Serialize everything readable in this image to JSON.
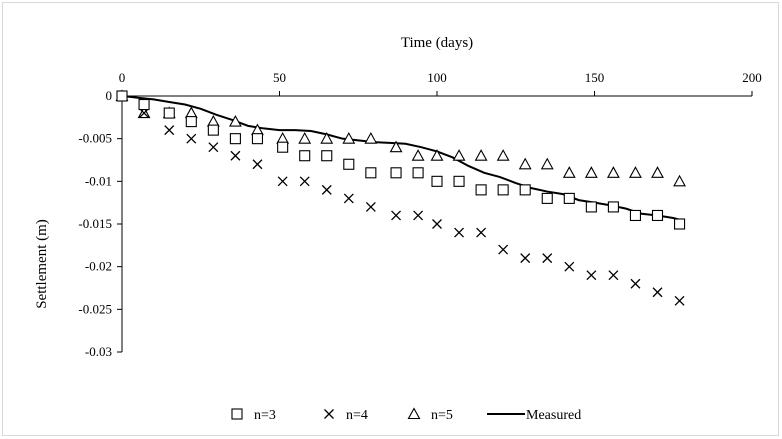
{
  "chart_data": {
    "type": "scatter",
    "xlabel": "Time (days)",
    "ylabel": "Settlement (m)",
    "xlim": [
      0,
      200
    ],
    "ylim": [
      -0.03,
      0
    ],
    "x_ticks": [
      0,
      50,
      100,
      150,
      200
    ],
    "y_ticks": [
      0,
      -0.005,
      -0.01,
      -0.015,
      -0.02,
      -0.025,
      -0.03
    ],
    "x_tick_labels": [
      "0",
      "50",
      "100",
      "150",
      "200"
    ],
    "y_tick_labels": [
      "0",
      "-0.005",
      "-0.01",
      "-0.015",
      "-0.02",
      "-0.025",
      "-0.03"
    ],
    "x_axis_position": "top",
    "grid": false,
    "legend_position": "bottom",
    "series": [
      {
        "name": "n=3",
        "marker": "square",
        "color": "#000000",
        "x": [
          0,
          7,
          15,
          22,
          29,
          36,
          43,
          51,
          58,
          65,
          72,
          79,
          87,
          94,
          100,
          107,
          114,
          121,
          128,
          135,
          142,
          149,
          156,
          163,
          170,
          177
        ],
        "y": [
          0,
          -0.001,
          -0.002,
          -0.003,
          -0.004,
          -0.005,
          -0.005,
          -0.006,
          -0.007,
          -0.007,
          -0.008,
          -0.009,
          -0.009,
          -0.009,
          -0.01,
          -0.01,
          -0.011,
          -0.011,
          -0.011,
          -0.012,
          -0.012,
          -0.013,
          -0.013,
          -0.014,
          -0.014,
          -0.015
        ]
      },
      {
        "name": "n=4",
        "marker": "x",
        "color": "#000000",
        "x": [
          0,
          7,
          15,
          22,
          29,
          36,
          43,
          51,
          58,
          65,
          72,
          79,
          87,
          94,
          100,
          107,
          114,
          121,
          128,
          135,
          142,
          149,
          156,
          163,
          170,
          177
        ],
        "y": [
          0,
          -0.002,
          -0.004,
          -0.005,
          -0.006,
          -0.007,
          -0.008,
          -0.01,
          -0.01,
          -0.011,
          -0.012,
          -0.013,
          -0.014,
          -0.014,
          -0.015,
          -0.016,
          -0.016,
          -0.018,
          -0.019,
          -0.019,
          -0.02,
          -0.021,
          -0.021,
          -0.022,
          -0.023,
          -0.024
        ]
      },
      {
        "name": "n=5",
        "marker": "triangle",
        "color": "#000000",
        "x": [
          0,
          7,
          15,
          22,
          29,
          36,
          43,
          51,
          58,
          65,
          72,
          79,
          87,
          94,
          100,
          107,
          114,
          121,
          128,
          135,
          142,
          149,
          156,
          163,
          170,
          177
        ],
        "y": [
          0,
          -0.002,
          -0.002,
          -0.002,
          -0.003,
          -0.003,
          -0.004,
          -0.005,
          -0.005,
          -0.005,
          -0.005,
          -0.005,
          -0.006,
          -0.007,
          -0.007,
          -0.007,
          -0.007,
          -0.007,
          -0.008,
          -0.008,
          -0.009,
          -0.009,
          -0.009,
          -0.009,
          -0.009,
          -0.01
        ]
      },
      {
        "name": "Measured",
        "marker": "line",
        "color": "#000000",
        "x": [
          0,
          5,
          10,
          15,
          20,
          25,
          30,
          35,
          40,
          45,
          50,
          55,
          60,
          65,
          70,
          75,
          80,
          85,
          90,
          95,
          100,
          105,
          110,
          115,
          120,
          125,
          130,
          135,
          140,
          145,
          150,
          155,
          160,
          165,
          170,
          175,
          177
        ],
        "y": [
          0,
          -0.0002,
          -0.0004,
          -0.0007,
          -0.001,
          -0.0015,
          -0.0022,
          -0.0028,
          -0.0035,
          -0.0038,
          -0.004,
          -0.004,
          -0.0041,
          -0.0045,
          -0.005,
          -0.0052,
          -0.0054,
          -0.0055,
          -0.0056,
          -0.006,
          -0.0065,
          -0.0072,
          -0.0082,
          -0.009,
          -0.0095,
          -0.0102,
          -0.0108,
          -0.0112,
          -0.0115,
          -0.0122,
          -0.0125,
          -0.0128,
          -0.0132,
          -0.0138,
          -0.014,
          -0.0143,
          -0.0145
        ]
      }
    ]
  }
}
